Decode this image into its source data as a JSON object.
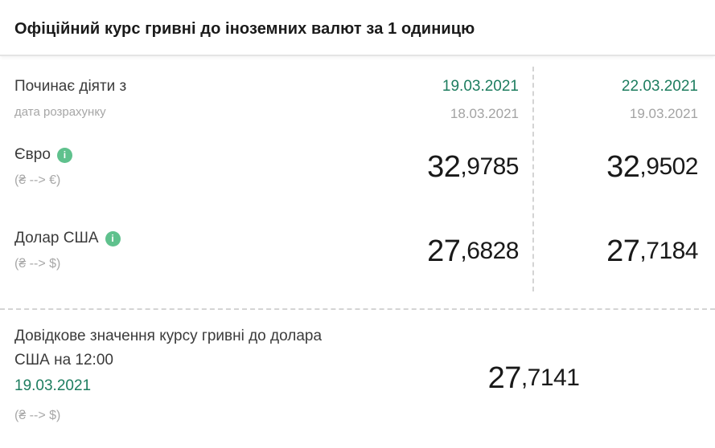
{
  "title": "Офіційний курс гривні до іноземних валют за 1 одиницю",
  "header": {
    "label": "Починає діяти з",
    "sublabel": "дата розрахунку",
    "col1": {
      "effective_date": "19.03.2021",
      "calc_date": "18.03.2021"
    },
    "col2": {
      "effective_date": "22.03.2021",
      "calc_date": "19.03.2021"
    }
  },
  "info_icon_glyph": "i",
  "rows": [
    {
      "name": "Євро",
      "pair": "(₴ --> €)",
      "col1": {
        "int": "32",
        "frac": ",9785"
      },
      "col2": {
        "int": "32",
        "frac": ",9502"
      }
    },
    {
      "name": "Долар США",
      "pair": "(₴ --> $)",
      "col1": {
        "int": "27",
        "frac": ",6828"
      },
      "col2": {
        "int": "27",
        "frac": ",7184"
      }
    }
  ],
  "reference": {
    "title": "Довідкове значення курсу гривні до долара США на 12:00",
    "date": "19.03.2021",
    "pair": "(₴ --> $)",
    "value": {
      "int": "27",
      "frac": ",7141"
    }
  },
  "colors": {
    "accent_green": "#1d7d5f",
    "info_icon_green": "#5fc18d",
    "muted_gray": "#a6a6a6",
    "value_black": "#191919"
  }
}
